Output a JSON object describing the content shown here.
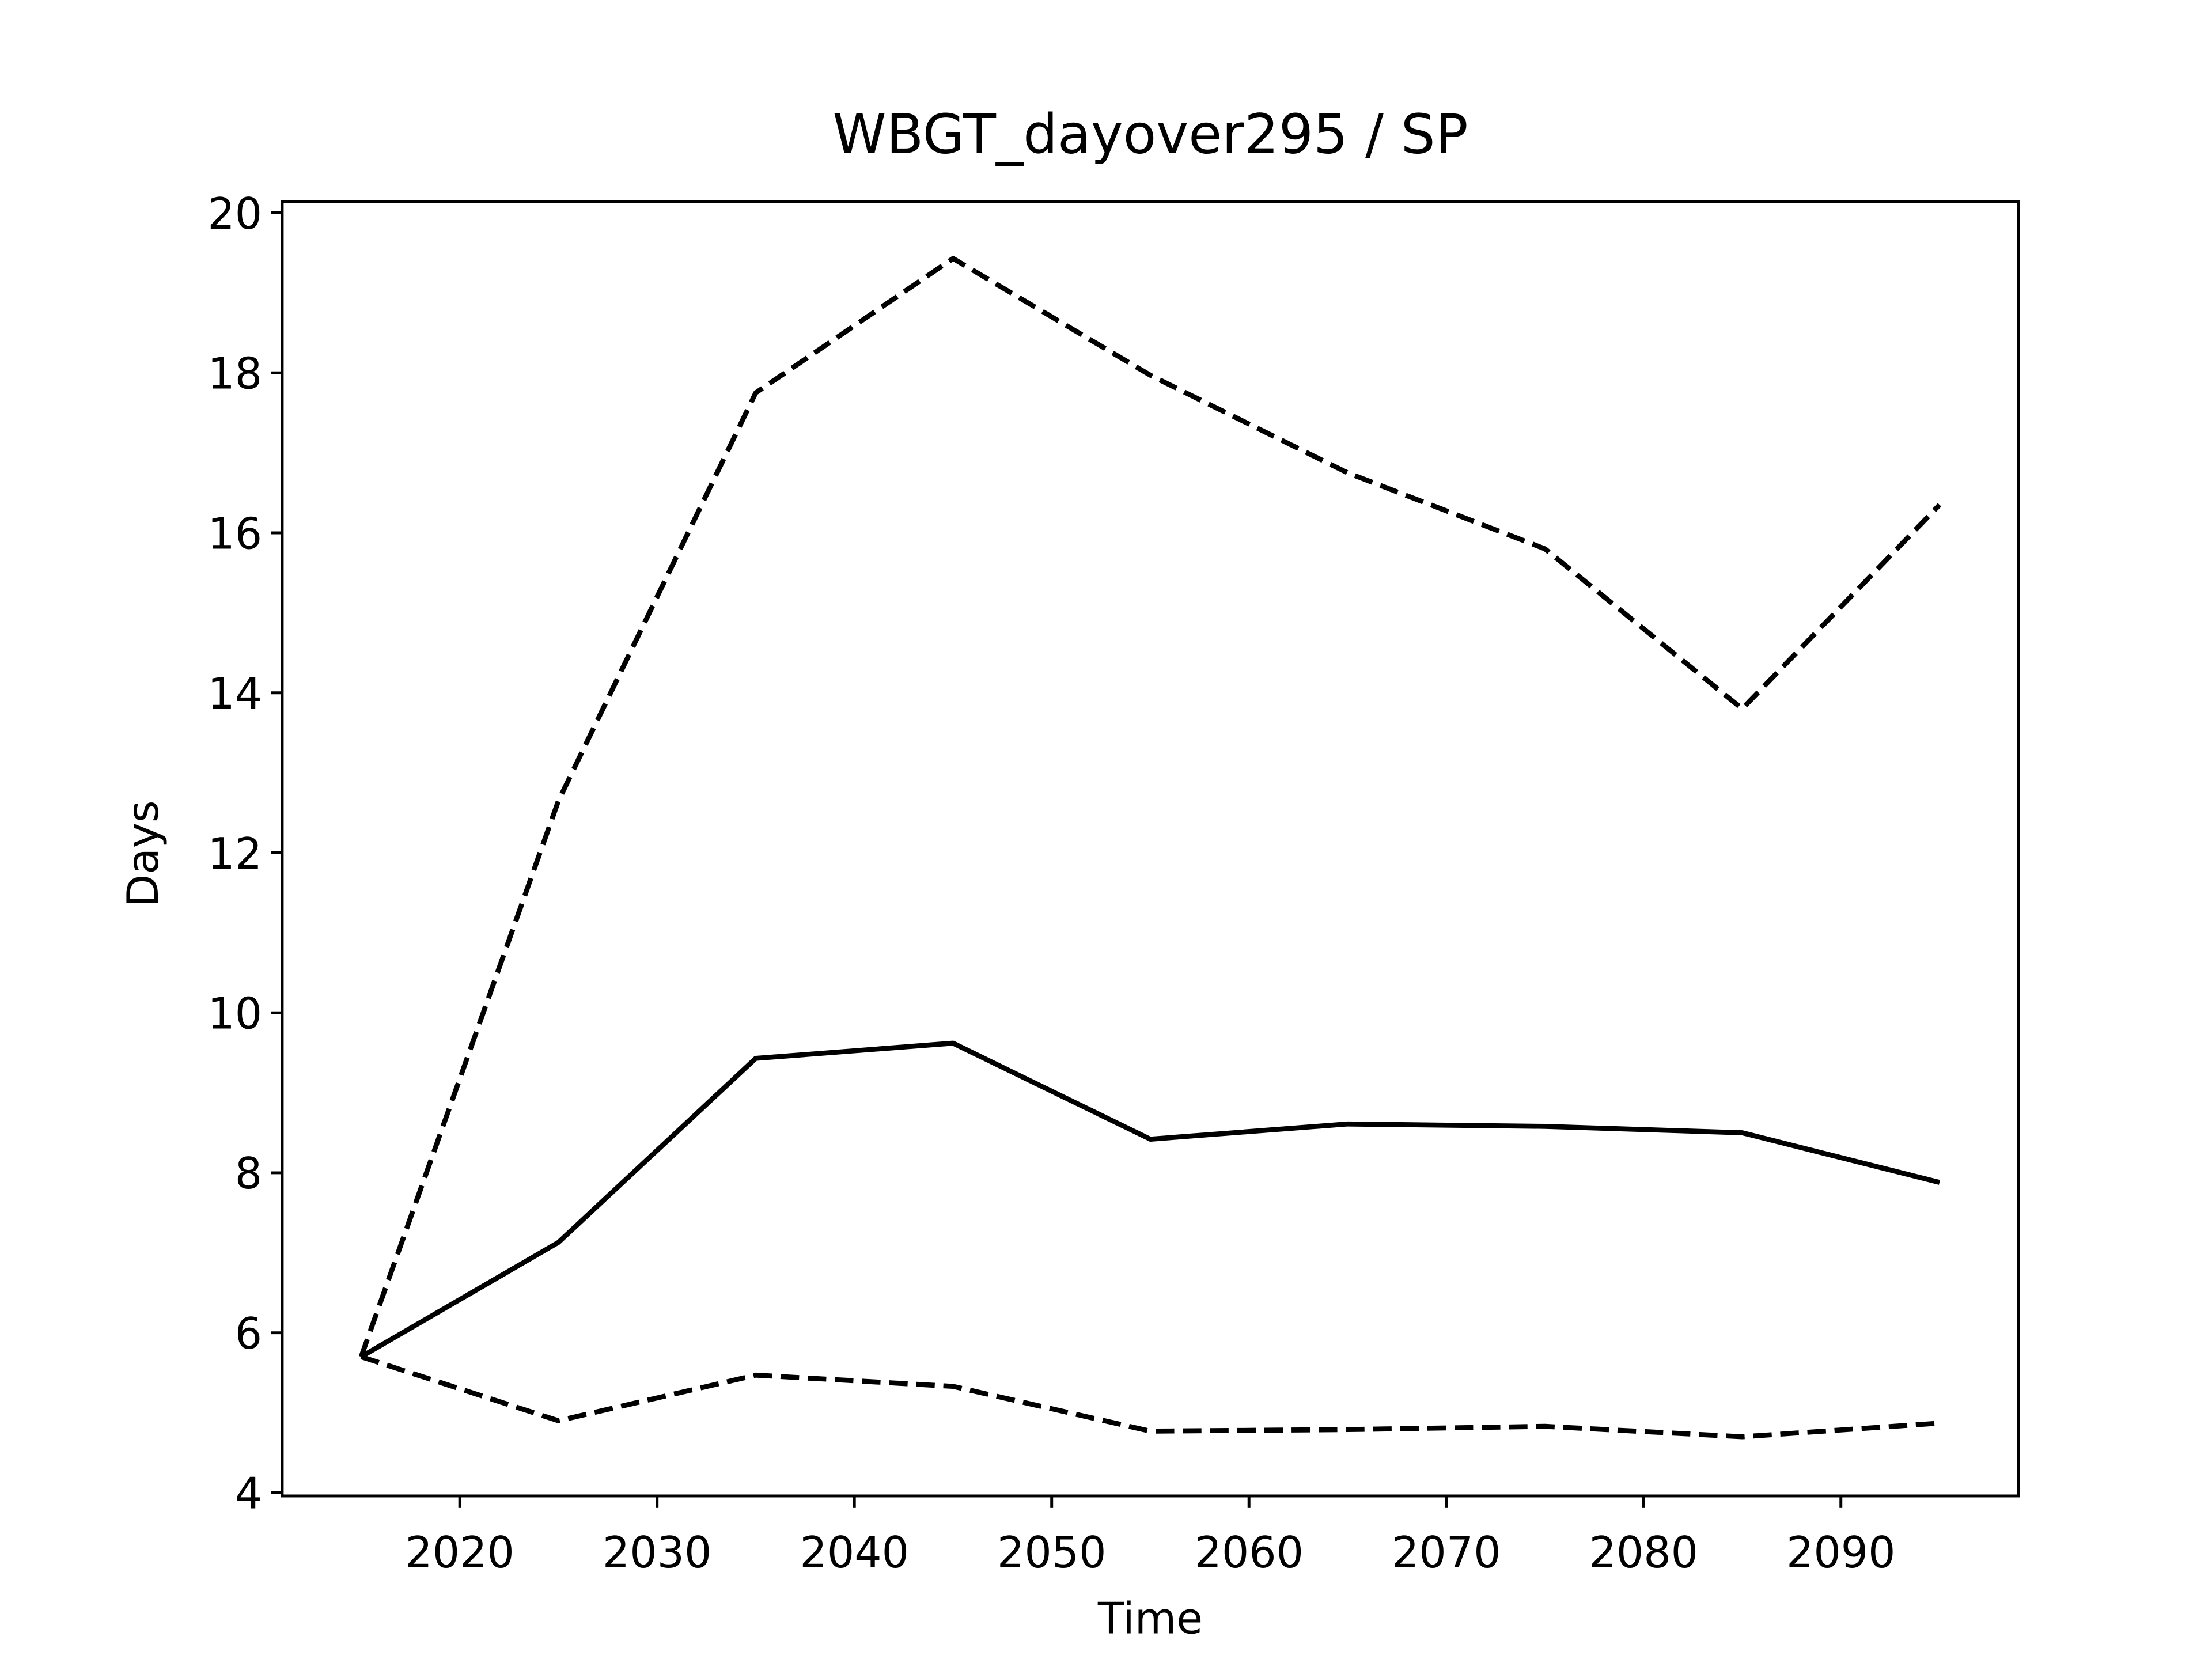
{
  "chart_data": {
    "type": "line",
    "title": "WBGT_dayover295 / SP",
    "xlabel": "Time",
    "ylabel": "Days",
    "x": [
      2015,
      2025,
      2035,
      2045,
      2055,
      2065,
      2075,
      2085,
      2095
    ],
    "series": [
      {
        "color": "#000000",
        "dashed": false,
        "values": [
          5.7,
          7.13,
          9.43,
          9.62,
          8.42,
          8.61,
          8.58,
          8.5,
          7.88
        ]
      },
      {
        "color": "#000000",
        "dashed": true,
        "values": [
          5.7,
          12.65,
          17.75,
          19.43,
          17.97,
          16.75,
          15.8,
          13.8,
          16.35
        ]
      },
      {
        "color": "#000000",
        "dashed": true,
        "values": [
          5.7,
          4.9,
          5.47,
          5.33,
          4.77,
          4.79,
          4.83,
          4.7,
          4.87
        ]
      }
    ],
    "xlim": [
      2011,
      2099
    ],
    "xticks": [
      2020,
      2030,
      2040,
      2050,
      2060,
      2070,
      2080,
      2090
    ],
    "ylim": [
      3.96,
      20.14
    ],
    "yticks": [
      4,
      6,
      8,
      10,
      12,
      14,
      16,
      18,
      20
    ],
    "grid": false
  }
}
